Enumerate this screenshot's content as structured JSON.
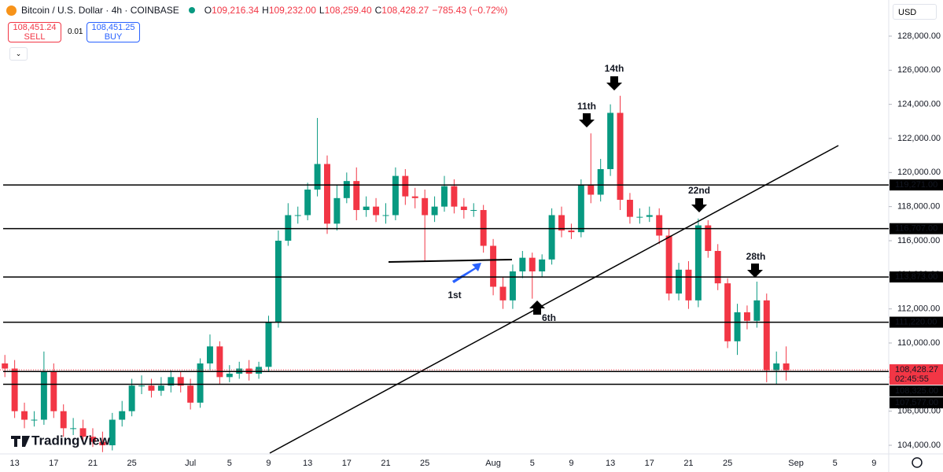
{
  "header": {
    "symbol": "Bitcoin / U.S. Dollar · 4h · COINBASE",
    "ohlc": [
      {
        "label": "O",
        "value": "109,216.34"
      },
      {
        "label": "H",
        "value": "109,232.00"
      },
      {
        "label": "L",
        "value": "108,259.40"
      },
      {
        "label": "C",
        "value": "108,428.27"
      }
    ],
    "change": "−785.43 (−0.72%)",
    "sell_price": "108,451.24",
    "sell_label": "SELL",
    "spread": "0.01",
    "buy_price": "108,451.25",
    "buy_label": "BUY",
    "currency": "USD",
    "watermark": "TradingView"
  },
  "chart_data": {
    "type": "candlestick",
    "up_color": "#089981",
    "down_color": "#f23645",
    "level_color": "#000000",
    "ylim": [
      103540,
      130120
    ],
    "yticks": [
      {
        "value": 104000,
        "label": "104,000.00"
      },
      {
        "value": 106000,
        "label": "106,000.00"
      },
      {
        "value": 108000,
        "label": "108,000.00"
      },
      {
        "value": 110000,
        "label": "110,000.00"
      },
      {
        "value": 112000,
        "label": "112,000.00"
      },
      {
        "value": 114000,
        "label": "114,000.00"
      },
      {
        "value": 116000,
        "label": "116,000.00"
      },
      {
        "value": 118000,
        "label": "118,000.00"
      },
      {
        "value": 120000,
        "label": "120,000.00"
      },
      {
        "value": 122000,
        "label": "122,000.00"
      },
      {
        "value": 124000,
        "label": "124,000.00"
      },
      {
        "value": 126000,
        "label": "126,000.00"
      },
      {
        "value": 128000,
        "label": "128,000.00"
      }
    ],
    "categories": [
      null,
      "13",
      null,
      null,
      null,
      "17",
      null,
      null,
      null,
      "21",
      null,
      null,
      null,
      "25",
      null,
      null,
      null,
      null,
      null,
      "Jul",
      null,
      null,
      null,
      "5",
      null,
      null,
      null,
      "9",
      null,
      null,
      null,
      "13",
      null,
      null,
      null,
      "17",
      null,
      null,
      null,
      "21",
      null,
      null,
      null,
      "25",
      null,
      null,
      null,
      null,
      null,
      null,
      "Aug",
      null,
      null,
      null,
      "5",
      null,
      null,
      null,
      "9",
      null,
      null,
      null,
      "13",
      null,
      null,
      null,
      "17",
      null,
      null,
      null,
      "21",
      null,
      null,
      null,
      "25",
      null,
      null,
      null,
      null,
      null,
      null,
      "Sep",
      null,
      null,
      null,
      "5",
      null,
      null,
      null,
      "9",
      null
    ],
    "open": [
      108800,
      108500,
      106000,
      105500,
      105500,
      108300,
      106000,
      105000,
      105000,
      104500,
      104200,
      104000,
      105500,
      106000,
      107500,
      107500,
      107200,
      107500,
      108000,
      107500,
      106500,
      108800,
      109800,
      108000,
      108200,
      108500,
      108200,
      108600,
      111200,
      116000,
      117500,
      117500,
      119000,
      120500,
      117000,
      118500,
      119500,
      117800,
      118000,
      117500,
      117500,
      119800,
      118600,
      118500,
      117500,
      118000,
      119200,
      118000,
      117800,
      117800,
      115700,
      113300,
      112500,
      114200,
      115000,
      114200,
      114900,
      117500,
      116600,
      116500,
      119300,
      118700,
      120200,
      123500,
      118400,
      117400,
      117400,
      117500,
      116300,
      112900,
      114300,
      112500,
      116900,
      115400,
      113500,
      110100,
      111800,
      111300,
      112500,
      108400,
      108800,
      null,
      null,
      null,
      null,
      null,
      null,
      null,
      null,
      null,
      null
    ],
    "high": [
      109300,
      109000,
      106500,
      106000,
      109500,
      108800,
      106400,
      105600,
      105500,
      105000,
      104800,
      105900,
      106600,
      107900,
      108100,
      107900,
      108000,
      108400,
      108300,
      107900,
      109100,
      110500,
      110100,
      108700,
      108900,
      109000,
      108900,
      111600,
      116600,
      118200,
      118000,
      119400,
      123200,
      121000,
      119300,
      120000,
      120300,
      118600,
      118500,
      118200,
      120300,
      120200,
      119100,
      119000,
      118600,
      119800,
      119600,
      118500,
      118200,
      118100,
      116100,
      113900,
      114600,
      115400,
      115300,
      115200,
      117900,
      118000,
      117000,
      119600,
      122300,
      120800,
      124000,
      124500,
      118800,
      117900,
      118000,
      117900,
      116700,
      114700,
      114800,
      117300,
      117200,
      115800,
      113800,
      112300,
      112200,
      113600,
      112900,
      109500,
      109800,
      null,
      null,
      null,
      null,
      null,
      null,
      null,
      null,
      null,
      null
    ],
    "low": [
      108000,
      105600,
      105000,
      105100,
      105200,
      105600,
      104500,
      104600,
      104100,
      103900,
      103600,
      103700,
      105100,
      105700,
      107000,
      106800,
      106900,
      107100,
      107100,
      106100,
      106200,
      108400,
      107600,
      107700,
      107900,
      107800,
      107900,
      108300,
      110900,
      115700,
      117000,
      117200,
      118600,
      116400,
      116600,
      118200,
      117200,
      117400,
      117100,
      117000,
      117200,
      118100,
      117900,
      114800,
      117100,
      117700,
      117600,
      117300,
      117400,
      115300,
      112800,
      112000,
      112000,
      113800,
      112600,
      113900,
      114600,
      116200,
      116100,
      116200,
      118200,
      118300,
      119800,
      117800,
      117000,
      117000,
      117100,
      115800,
      112500,
      112500,
      112000,
      112100,
      115000,
      113100,
      109700,
      109300,
      110800,
      110900,
      107700,
      107600,
      107800,
      null,
      null,
      null,
      null,
      null,
      null,
      null,
      null,
      null,
      null
    ],
    "close": [
      108500,
      106000,
      105500,
      105500,
      108300,
      106000,
      105000,
      105000,
      104500,
      104200,
      104000,
      105500,
      106000,
      107500,
      107500,
      107200,
      107500,
      108000,
      107500,
      106500,
      108800,
      109800,
      108000,
      108200,
      108500,
      108200,
      108600,
      111200,
      116000,
      117500,
      117500,
      119000,
      120500,
      117000,
      118500,
      119500,
      117800,
      118000,
      117500,
      117500,
      119800,
      118600,
      118500,
      117500,
      118000,
      119200,
      118000,
      117800,
      117800,
      115700,
      113300,
      112500,
      114200,
      115000,
      114200,
      114900,
      117500,
      116600,
      116500,
      119300,
      118700,
      120200,
      123500,
      118400,
      117400,
      117400,
      117500,
      116300,
      112900,
      114300,
      112500,
      116900,
      115400,
      113500,
      110100,
      111800,
      111300,
      112500,
      108400,
      108800,
      108400,
      null,
      null,
      null,
      null,
      null,
      null,
      null,
      null,
      null,
      null
    ],
    "levels": [
      {
        "value": 119271,
        "label": "119,271.00"
      },
      {
        "value": 116707,
        "label": "116,707.00"
      },
      {
        "value": 113873,
        "label": "113,873.00"
      },
      {
        "value": 111220,
        "label": "111,220.00"
      },
      {
        "value": 108325,
        "label": "108,325.00"
      },
      {
        "value": 107577,
        "label": "107,577.00"
      }
    ],
    "last_price": {
      "value": 108428.27,
      "label": "108,428.27"
    },
    "countdown": "02:45:55",
    "annotations": [
      "1st",
      "6th",
      "11th",
      "14th",
      "22nd",
      "28th"
    ]
  }
}
